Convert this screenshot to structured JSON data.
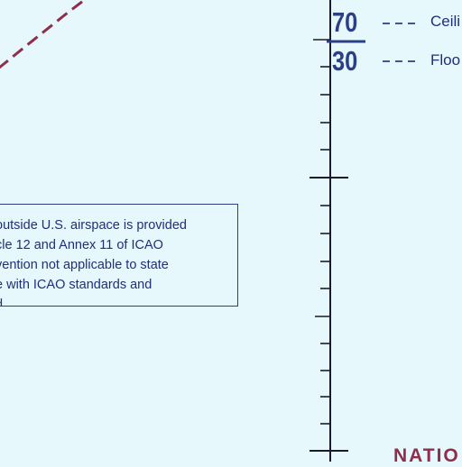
{
  "map": {
    "note_lines": [
      "outside U.S. airspace is provided",
      "cle 12 and Annex 11 of ICAO",
      "vention not applicable to state",
      "e with ICAO standards and",
      "d."
    ],
    "legend": {
      "ceiling_value": "70",
      "floor_value": "30",
      "ceiling_label": "Ceili",
      "floor_label": "Floo"
    },
    "bottom_label": "NATIO",
    "colors": {
      "background": "#e6f8fb",
      "ink_blue": "#2b3f86",
      "boundary_maroon": "#8f2d4c"
    }
  }
}
